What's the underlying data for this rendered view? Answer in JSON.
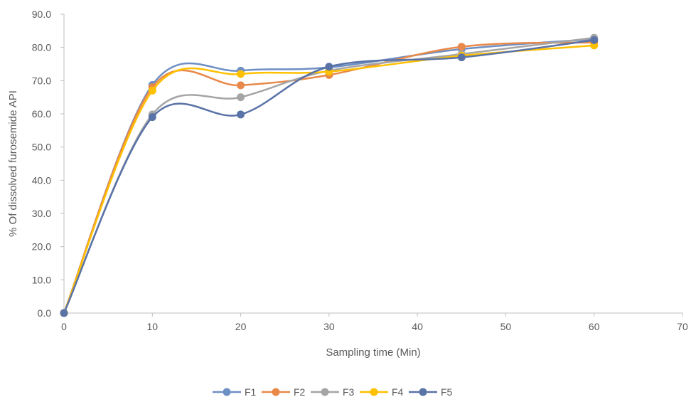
{
  "chart_data": {
    "type": "line",
    "smooth": true,
    "xlabel": "Sampling time (Min)",
    "ylabel": "% Of dissolved furosemide API",
    "xlim": [
      0,
      70
    ],
    "ylim": [
      0,
      90
    ],
    "x_ticks": [
      0,
      10,
      20,
      30,
      40,
      50,
      60,
      70
    ],
    "y_ticks": [
      0,
      10,
      20,
      30,
      40,
      50,
      60,
      70,
      80,
      90
    ],
    "x_tick_labels": [
      "0",
      "10",
      "20",
      "30",
      "40",
      "50",
      "60",
      "70"
    ],
    "y_tick_labels": [
      "0.0",
      "10.0",
      "20.0",
      "30.0",
      "40.0",
      "50.0",
      "60.0",
      "70.0",
      "80.0",
      "90.0"
    ],
    "grid": false,
    "legend_position": "bottom",
    "x": [
      0,
      10,
      20,
      30,
      45,
      60
    ],
    "series": [
      {
        "name": "F1",
        "color": "#6E8FC4",
        "values": [
          0,
          68.7,
          73.0,
          74.0,
          79.5,
          82.5
        ]
      },
      {
        "name": "F2",
        "color": "#E8894A",
        "values": [
          0,
          68.0,
          68.6,
          71.7,
          80.2,
          81.5
        ]
      },
      {
        "name": "F3",
        "color": "#A5A5A5",
        "values": [
          0,
          59.8,
          65.0,
          73.0,
          78.0,
          82.9
        ]
      },
      {
        "name": "F4",
        "color": "#FFC000",
        "values": [
          0,
          67.0,
          72.0,
          72.7,
          77.5,
          80.6
        ]
      },
      {
        "name": "F5",
        "color": "#5A73A7",
        "values": [
          0,
          59.0,
          59.8,
          74.2,
          77.0,
          82.2
        ]
      }
    ]
  }
}
